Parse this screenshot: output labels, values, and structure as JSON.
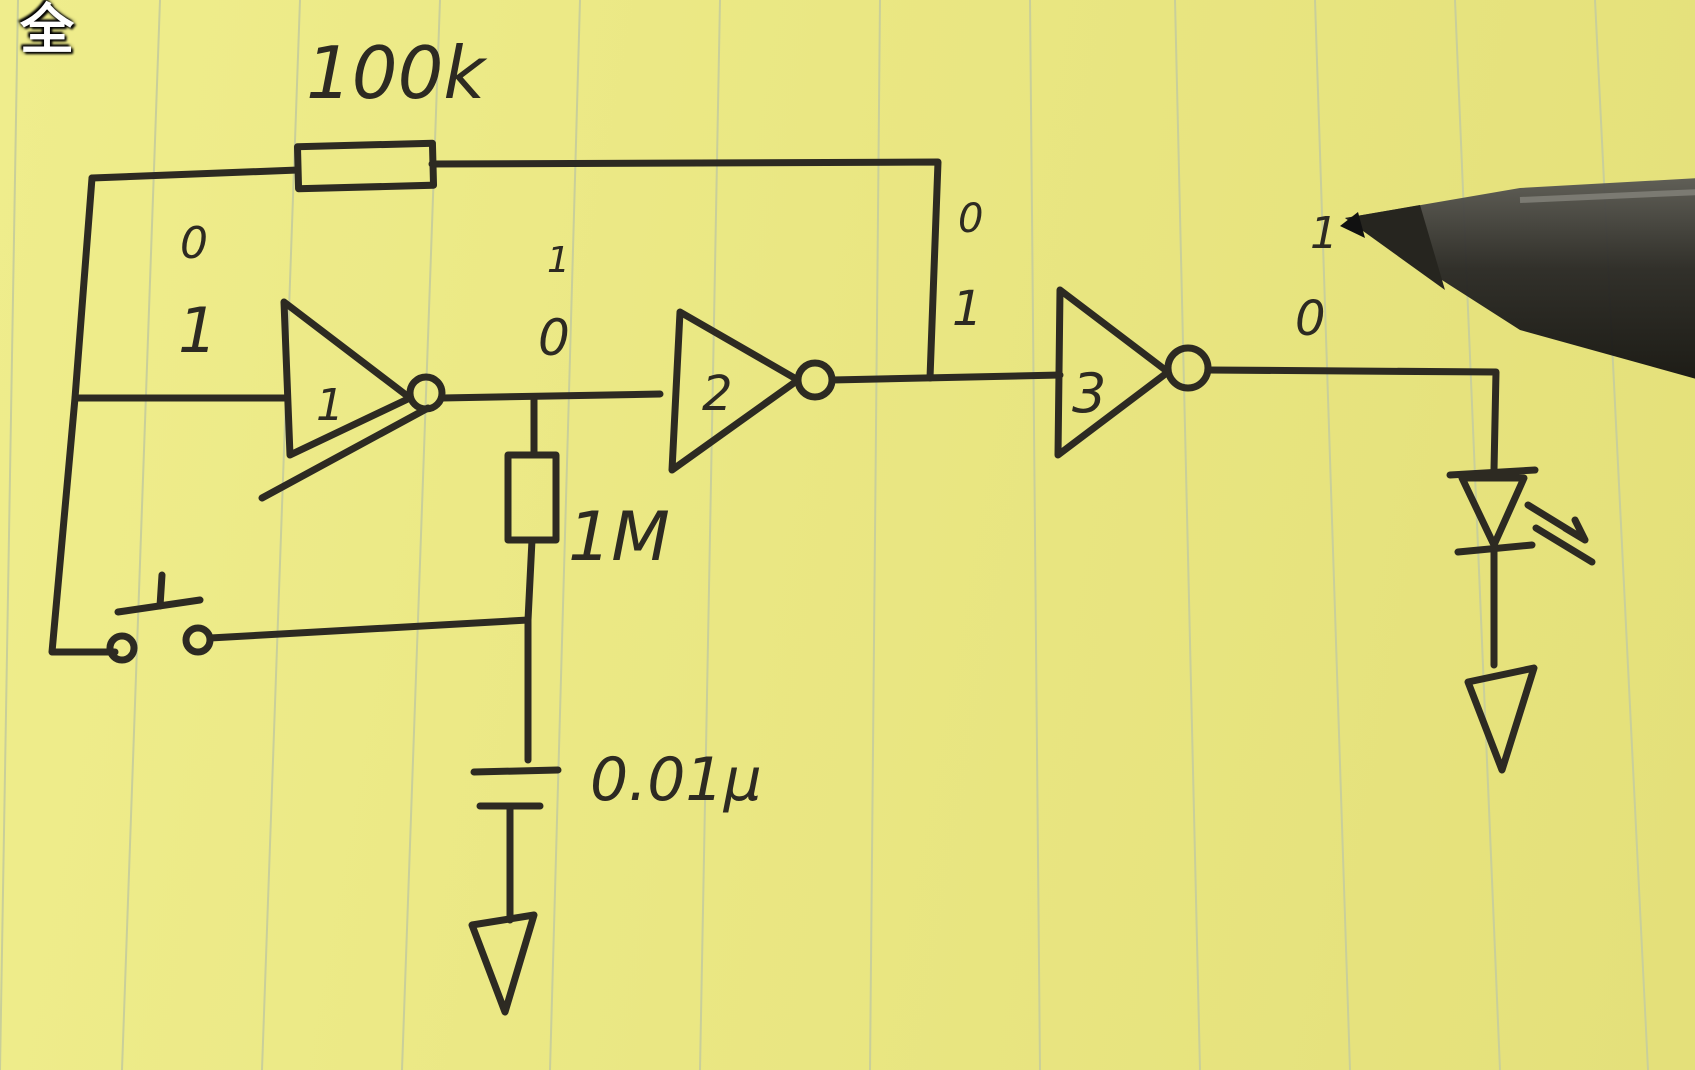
{
  "caption": "全",
  "schematic": {
    "feedback_resistor_label": "100k",
    "timing_resistor_label": "1M",
    "capacitor_label": "0.01μ",
    "inverter_labels": [
      "1",
      "2",
      "3"
    ],
    "logic_states": {
      "inverter1_input": [
        "0",
        "1"
      ],
      "inverter1_output": [
        "1",
        "0"
      ],
      "inverter2_output": [
        "0",
        "1"
      ],
      "inverter3_output": [
        "1",
        "0"
      ]
    },
    "components": [
      "switch-icon",
      "resistor-icon",
      "capacitor-icon",
      "inverter-icon",
      "led-icon",
      "ground-icon",
      "pen-icon"
    ],
    "ink_color": "#2d2a22",
    "paper_color": "#ecea86",
    "rule_color": "#c9cf9a"
  }
}
